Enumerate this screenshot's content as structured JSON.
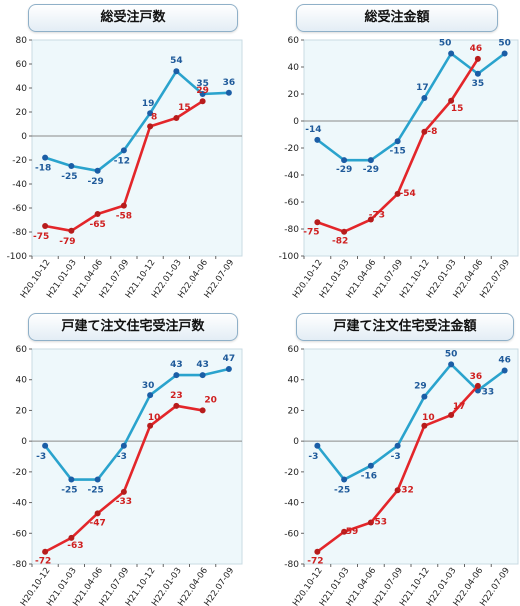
{
  "colors": {
    "blue_line": "#2aa3cd",
    "blue_marker": "#1b5ea6",
    "red_line": "#e3262a",
    "plot_bg": "#eef8fb",
    "zero_line": "#8a8a8a"
  },
  "chart_data": [
    {
      "type": "line",
      "title": "総受注戸数",
      "categories": [
        "H20.10-12",
        "H21.01-03",
        "H21.04-06",
        "H21.07-09",
        "H21.10-12",
        "H22.01-03",
        "H22.04-06",
        "H22.07-09"
      ],
      "ylim": [
        -100,
        80
      ],
      "yticks": [
        -100,
        -80,
        -60,
        -40,
        -20,
        0,
        20,
        40,
        60,
        80
      ],
      "series": [
        {
          "color": "blue",
          "values": [
            -18,
            -25,
            -29,
            -12,
            19,
            54,
            35,
            36
          ]
        },
        {
          "color": "red",
          "values": [
            -75,
            -79,
            -65,
            -58,
            8,
            15,
            29,
            null
          ]
        }
      ]
    },
    {
      "type": "line",
      "title": "総受注金額",
      "categories": [
        "H20.10-12",
        "H21.01-03",
        "H21.04-06",
        "H21.07-09",
        "H21.10-12",
        "H22.01-03",
        "H22.04-06",
        "H22.07-09"
      ],
      "ylim": [
        -100,
        60
      ],
      "yticks": [
        -100,
        -80,
        -60,
        -40,
        -20,
        0,
        20,
        40,
        60
      ],
      "series": [
        {
          "color": "blue",
          "values": [
            -14,
            -29,
            -29,
            -15,
            17,
            50,
            35,
            50
          ]
        },
        {
          "color": "red",
          "values": [
            -75,
            -82,
            -73,
            -54,
            -8,
            15,
            46,
            null
          ]
        }
      ]
    },
    {
      "type": "line",
      "title": "戸建て注文住宅受注戸数",
      "categories": [
        "H20.10-12",
        "H21.01-03",
        "H21.04-06",
        "H21.07-09",
        "H21.10-12",
        "H22.01-03",
        "H22.04-06",
        "H22.07-09"
      ],
      "ylim": [
        -80,
        60
      ],
      "yticks": [
        -80,
        -60,
        -40,
        -20,
        0,
        20,
        40,
        60
      ],
      "series": [
        {
          "color": "blue",
          "values": [
            -3,
            -25,
            -25,
            -3,
            30,
            43,
            43,
            47
          ]
        },
        {
          "color": "red",
          "values": [
            -72,
            -63,
            -47,
            -33,
            10,
            23,
            20,
            null
          ]
        }
      ]
    },
    {
      "type": "line",
      "title": "戸建て注文住宅受注金額",
      "categories": [
        "H20.10-12",
        "H21.01-03",
        "H21.04-06",
        "H21.07-09",
        "H21.10-12",
        "H22.01-03",
        "H22.04-06",
        "H22.07-09"
      ],
      "ylim": [
        -80,
        60
      ],
      "yticks": [
        -80,
        -60,
        -40,
        -20,
        0,
        20,
        40,
        60
      ],
      "series": [
        {
          "color": "blue",
          "values": [
            -3,
            -25,
            -16,
            -3,
            29,
            50,
            33,
            46
          ]
        },
        {
          "color": "red",
          "values": [
            -72,
            -59,
            -53,
            -32,
            10,
            17,
            36,
            null
          ]
        }
      ]
    }
  ]
}
